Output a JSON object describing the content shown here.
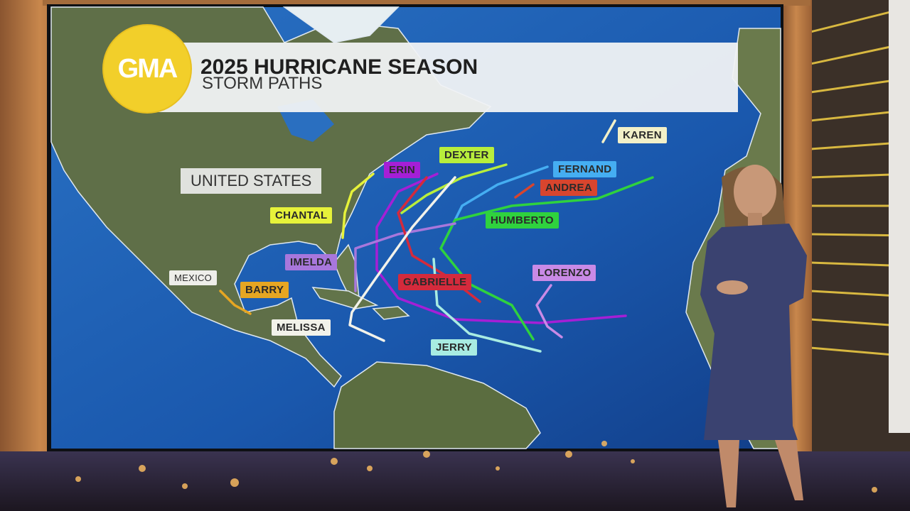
{
  "logo": {
    "text": "GMA",
    "color": "#f2cf2a"
  },
  "header": {
    "title": "2025 HURRICANE SEASON",
    "subtitle": "STORM PATHS"
  },
  "regions": {
    "united_states": "UNITED STATES",
    "mexico": "MEXICO"
  },
  "storms": [
    {
      "name": "KAREN",
      "color": "#f2f0c8"
    },
    {
      "name": "DEXTER",
      "color": "#b8ee3c"
    },
    {
      "name": "ERIN",
      "color": "#a51fd6"
    },
    {
      "name": "FERNAND",
      "color": "#45aef2"
    },
    {
      "name": "ANDREA",
      "color": "#d8452e"
    },
    {
      "name": "CHANTAL",
      "color": "#e6f23a"
    },
    {
      "name": "HUMBERTO",
      "color": "#2fd23e"
    },
    {
      "name": "IMELDA",
      "color": "#a877dc"
    },
    {
      "name": "GABRIELLE",
      "color": "#d42a3c"
    },
    {
      "name": "LORENZO",
      "color": "#c98ae6"
    },
    {
      "name": "BARRY",
      "color": "#e6a622"
    },
    {
      "name": "MELISSA",
      "color": "#f2f2ea"
    },
    {
      "name": "JERRY",
      "color": "#a8ece2"
    }
  ],
  "colors": {
    "ocean": "#1a5cb0",
    "land": "#5d6e45",
    "frame_wood": "#b87a45",
    "presenter_dress": "#3a4270"
  }
}
